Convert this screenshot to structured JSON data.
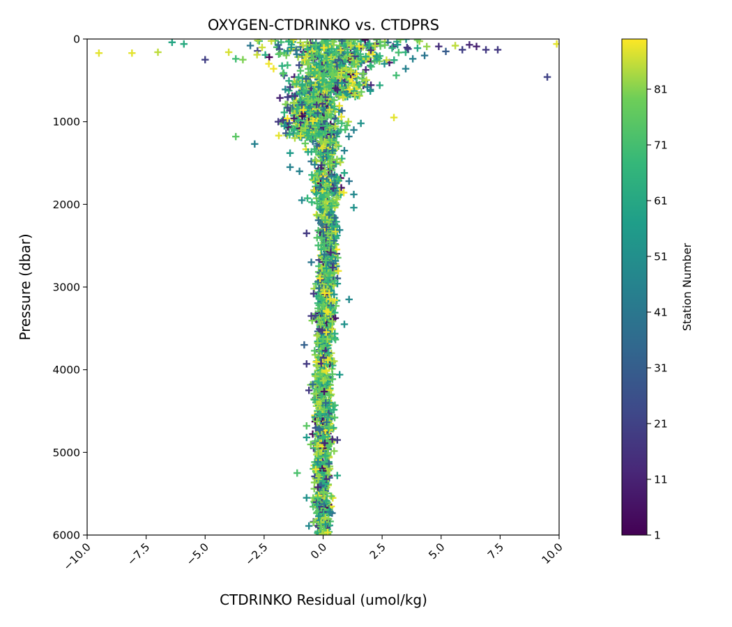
{
  "chart_data": {
    "type": "scatter",
    "title": "OXYGEN-CTDRINKO vs. CTDPRS",
    "xlabel": "CTDRINKO Residual (umol/kg)",
    "ylabel": "Pressure (dbar)",
    "xlim": [
      -10,
      10
    ],
    "ylim": [
      6000,
      0
    ],
    "y_inverted": true,
    "grid": false,
    "marker": "plus",
    "x_ticks": [
      -10.0,
      -7.5,
      -5.0,
      -2.5,
      0.0,
      2.5,
      5.0,
      7.5,
      10.0
    ],
    "x_tick_labels": [
      "−10.0",
      "−7.5",
      "−5.0",
      "−2.5",
      "0.0",
      "2.5",
      "5.0",
      "7.5",
      "10.0"
    ],
    "y_ticks": [
      0,
      1000,
      2000,
      3000,
      4000,
      5000,
      6000
    ],
    "y_tick_labels": [
      "0",
      "1000",
      "2000",
      "3000",
      "4000",
      "5000",
      "6000"
    ],
    "colorbar": {
      "label": "Station Number",
      "colormap": "viridis",
      "min": 1,
      "max": 90,
      "ticks": [
        1,
        11,
        21,
        31,
        41,
        51,
        61,
        71,
        81
      ],
      "tick_labels": [
        "1",
        "11",
        "21",
        "31",
        "41",
        "51",
        "61",
        "71",
        "81"
      ]
    },
    "points": [
      {
        "x": -9.5,
        "y": 170,
        "station": 88
      },
      {
        "x": -8.1,
        "y": 170,
        "station": 88
      },
      {
        "x": -7.0,
        "y": 160,
        "station": 85
      },
      {
        "x": -6.4,
        "y": 40,
        "station": 60
      },
      {
        "x": -5.9,
        "y": 60,
        "station": 62
      },
      {
        "x": -5.0,
        "y": 250,
        "station": 20
      },
      {
        "x": -4.0,
        "y": 160,
        "station": 87
      },
      {
        "x": -3.7,
        "y": 240,
        "station": 70
      },
      {
        "x": -3.4,
        "y": 250,
        "station": 80
      },
      {
        "x": -2.8,
        "y": 190,
        "station": 86
      },
      {
        "x": -2.3,
        "y": 300,
        "station": 89
      },
      {
        "x": -2.1,
        "y": 360,
        "station": 89
      },
      {
        "x": -1.7,
        "y": 420,
        "station": 75
      },
      {
        "x": -1.6,
        "y": 610,
        "station": 47
      },
      {
        "x": -1.2,
        "y": 690,
        "station": 18
      },
      {
        "x": -1.5,
        "y": 830,
        "station": 25
      },
      {
        "x": -1.7,
        "y": 980,
        "station": 18
      },
      {
        "x": -1.9,
        "y": 1000,
        "station": 18
      },
      {
        "x": -3.7,
        "y": 1180,
        "station": 75
      },
      {
        "x": -2.9,
        "y": 1270,
        "station": 45
      },
      {
        "x": -1.4,
        "y": 1380,
        "station": 55
      },
      {
        "x": -1.4,
        "y": 1550,
        "station": 45
      },
      {
        "x": -1.0,
        "y": 1600,
        "station": 45
      },
      {
        "x": -0.9,
        "y": 1950,
        "station": 48
      },
      {
        "x": -0.7,
        "y": 2350,
        "station": 18
      },
      {
        "x": -0.5,
        "y": 2700,
        "station": 40
      },
      {
        "x": -0.4,
        "y": 3080,
        "station": 18
      },
      {
        "x": -0.5,
        "y": 3350,
        "station": 18
      },
      {
        "x": -0.8,
        "y": 3700,
        "station": 32
      },
      {
        "x": -0.7,
        "y": 3930,
        "station": 18
      },
      {
        "x": -0.6,
        "y": 4250,
        "station": 18
      },
      {
        "x": -0.7,
        "y": 4680,
        "station": 75
      },
      {
        "x": -0.7,
        "y": 4820,
        "station": 55
      },
      {
        "x": -1.1,
        "y": 5250,
        "station": 72
      },
      {
        "x": -0.7,
        "y": 5550,
        "station": 52
      },
      {
        "x": -0.6,
        "y": 5890,
        "station": 48
      },
      {
        "x": 9.9,
        "y": 60,
        "station": 88
      },
      {
        "x": 9.5,
        "y": 460,
        "station": 21
      },
      {
        "x": 7.4,
        "y": 130,
        "station": 18
      },
      {
        "x": 6.9,
        "y": 130,
        "station": 18
      },
      {
        "x": 6.5,
        "y": 90,
        "station": 10
      },
      {
        "x": 6.2,
        "y": 70,
        "station": 12
      },
      {
        "x": 5.9,
        "y": 130,
        "station": 20
      },
      {
        "x": 5.6,
        "y": 80,
        "station": 85
      },
      {
        "x": 5.2,
        "y": 150,
        "station": 30
      },
      {
        "x": 4.9,
        "y": 90,
        "station": 14
      },
      {
        "x": 4.3,
        "y": 200,
        "station": 40
      },
      {
        "x": 4.0,
        "y": 110,
        "station": 60
      },
      {
        "x": 3.8,
        "y": 240,
        "station": 45
      },
      {
        "x": 3.6,
        "y": 120,
        "station": 18
      },
      {
        "x": 3.5,
        "y": 360,
        "station": 45
      },
      {
        "x": 3.1,
        "y": 440,
        "station": 70
      },
      {
        "x": 3.0,
        "y": 950,
        "station": 88
      },
      {
        "x": 2.6,
        "y": 300,
        "station": 52
      },
      {
        "x": 2.4,
        "y": 560,
        "station": 62
      },
      {
        "x": 2.2,
        "y": 80,
        "station": 85
      },
      {
        "x": 2.0,
        "y": 630,
        "station": 55
      },
      {
        "x": 1.7,
        "y": 420,
        "station": 80
      },
      {
        "x": 1.6,
        "y": 1020,
        "station": 52
      },
      {
        "x": 1.3,
        "y": 1100,
        "station": 45
      },
      {
        "x": 1.3,
        "y": 1880,
        "station": 48
      },
      {
        "x": 1.3,
        "y": 2040,
        "station": 52
      },
      {
        "x": 1.1,
        "y": 1720,
        "station": 40
      },
      {
        "x": 0.9,
        "y": 1620,
        "station": 60
      },
      {
        "x": 0.9,
        "y": 1350,
        "station": 45
      },
      {
        "x": 0.7,
        "y": 2310,
        "station": 48
      },
      {
        "x": 1.1,
        "y": 3150,
        "station": 48
      },
      {
        "x": 0.9,
        "y": 3450,
        "station": 52
      },
      {
        "x": 0.7,
        "y": 4060,
        "station": 55
      },
      {
        "x": 0.5,
        "y": 4430,
        "station": 70
      },
      {
        "x": 0.6,
        "y": 4850,
        "station": 18
      },
      {
        "x": 0.6,
        "y": 5280,
        "station": 60
      },
      {
        "x": 0.3,
        "y": 5720,
        "station": 45
      },
      {
        "x": 0.1,
        "y": 5870,
        "station": 55
      }
    ],
    "cloud": {
      "columns": [
        "y_min",
        "y_max",
        "x_center",
        "x_spread"
      ],
      "rows": [
        [
          0,
          300,
          0.5,
          3.2
        ],
        [
          300,
          700,
          0.2,
          1.4
        ],
        [
          700,
          1200,
          -0.4,
          1.0
        ],
        [
          1200,
          2000,
          0.1,
          0.55
        ],
        [
          2000,
          3000,
          0.2,
          0.35
        ],
        [
          3000,
          4000,
          0.1,
          0.35
        ],
        [
          4000,
          5000,
          0.0,
          0.35
        ],
        [
          5000,
          6000,
          -0.05,
          0.3
        ]
      ]
    }
  }
}
